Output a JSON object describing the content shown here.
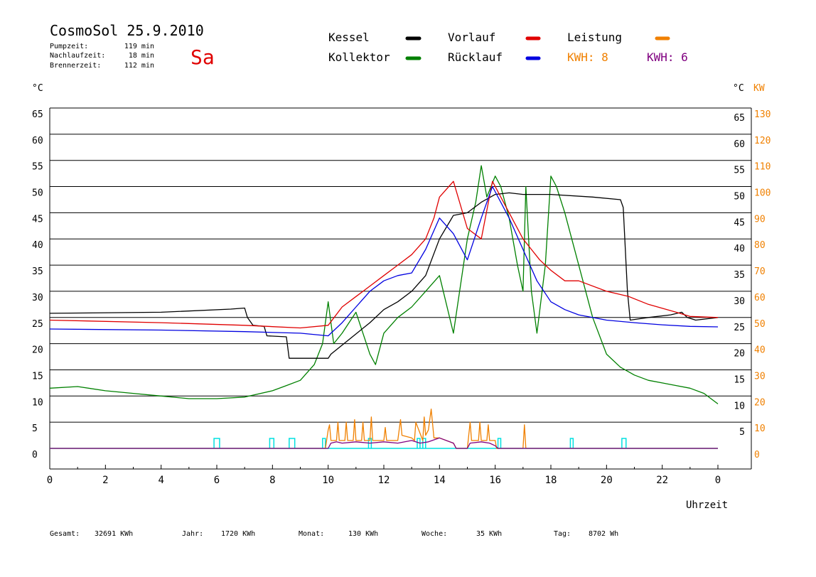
{
  "header": {
    "title": "CosmoSol 25.9.2010",
    "day": "Sa",
    "stats": [
      {
        "label": "Pumpzeit:",
        "value": "119 min"
      },
      {
        "label": "Nachlaufzeit:",
        "value": "18 min"
      },
      {
        "label": "Brennerzeit:",
        "value": "112 min"
      }
    ]
  },
  "legend": {
    "items": [
      {
        "label": "Kessel",
        "color": "#000000"
      },
      {
        "label": "Kollektor",
        "color": "#008000"
      },
      {
        "label": "Vorlauf",
        "color": "#e00000"
      },
      {
        "label": "Rücklauf",
        "color": "#0000e0"
      },
      {
        "label": "Leistung",
        "color": "#f08000"
      }
    ],
    "kwh_orange": "KWH: 8",
    "kwh_purple": "KWH: 6"
  },
  "colors": {
    "kessel": "#000000",
    "kollektor": "#008000",
    "vorlauf": "#e00000",
    "ruecklauf": "#0000e0",
    "leistung": "#f08000",
    "leistung2": "#800080",
    "pump": "#00e0e0",
    "kwh_orange": "#f08000",
    "kwh_purple": "#800080"
  },
  "axes": {
    "left_unit": "°C",
    "right_unit": "°C",
    "right_unit2": "KW",
    "x_label": "Uhrzeit"
  },
  "footer": [
    {
      "label": "Gesamt:",
      "value": "32691 KWh"
    },
    {
      "label": "Jahr:",
      "value": "1720 KWh"
    },
    {
      "label": "Monat:",
      "value": "130 KWh"
    },
    {
      "label": "Woche:",
      "value": "35 KWh"
    },
    {
      "label": "Tag:",
      "value": "8702 Wh"
    }
  ],
  "chart_data": {
    "type": "line",
    "title": "CosmoSol 25.9.2010",
    "xlabel": "Uhrzeit",
    "ylabel": "°C",
    "ylabel_right": "KW",
    "xlim": [
      0,
      24
    ],
    "ylim": [
      0,
      65
    ],
    "ylim_right": [
      0,
      130
    ],
    "x_ticks": [
      "0",
      "2",
      "4",
      "6",
      "8",
      "10",
      "12",
      "14",
      "16",
      "18",
      "20",
      "22",
      "0"
    ],
    "y_ticks": [
      0,
      5,
      10,
      15,
      20,
      25,
      30,
      35,
      40,
      45,
      50,
      55,
      60,
      65
    ],
    "y_ticks_right": [
      0,
      10,
      20,
      30,
      40,
      50,
      60,
      70,
      80,
      90,
      100,
      110,
      120,
      130
    ],
    "grid": true,
    "series": [
      {
        "name": "Kessel",
        "key": "kessel",
        "x": [
          0,
          4,
          6.5,
          7.0,
          7.1,
          7.3,
          7.7,
          7.8,
          8.5,
          8.6,
          10.0,
          10.1,
          10.8,
          11.5,
          12.0,
          12.5,
          13.0,
          13.5,
          14.0,
          14.5,
          15.0,
          15.5,
          16.0,
          16.5,
          17.0,
          18.0,
          19.5,
          20.5,
          20.6,
          20.75,
          20.85,
          21.5,
          22.3,
          22.7,
          22.9,
          23.2,
          24.0
        ],
        "y": [
          25.8,
          26.0,
          26.6,
          26.8,
          25.0,
          23.5,
          23.3,
          21.5,
          21.3,
          17.2,
          17.2,
          18.0,
          21.0,
          24.0,
          26.5,
          28.0,
          30.0,
          33.0,
          40.0,
          44.5,
          45.0,
          47.0,
          48.5,
          48.8,
          48.5,
          48.5,
          48.0,
          47.5,
          46.0,
          30.0,
          24.5,
          25.0,
          25.5,
          26.0,
          25.0,
          24.5,
          25.0
        ]
      },
      {
        "name": "Vorlauf",
        "key": "vorlauf",
        "x": [
          0,
          4,
          7,
          9,
          10,
          10.5,
          11,
          11.5,
          12.0,
          12.5,
          13.0,
          13.5,
          13.8,
          14.0,
          14.5,
          15.0,
          15.5,
          15.9,
          16.5,
          17.0,
          17.3,
          17.6,
          18.0,
          18.5,
          19.0,
          20.0,
          20.8,
          21.5,
          22.5,
          23.0,
          24.0
        ],
        "y": [
          24.5,
          24.0,
          23.5,
          23.0,
          23.5,
          27.0,
          29.0,
          31.0,
          33.0,
          35.0,
          37.0,
          40.0,
          44.0,
          48.0,
          51.0,
          42.0,
          40.0,
          51.0,
          45.0,
          40.0,
          38.0,
          36.0,
          34.0,
          32.0,
          32.0,
          30.0,
          29.0,
          27.5,
          26.0,
          25.2,
          25.0
        ]
      },
      {
        "name": "Rücklauf",
        "key": "ruecklauf",
        "x": [
          0,
          4,
          7,
          9,
          10,
          10.5,
          11,
          11.5,
          12.0,
          12.5,
          13.0,
          13.5,
          14.0,
          14.5,
          15.0,
          15.5,
          15.9,
          16.5,
          17.0,
          17.5,
          18.0,
          18.5,
          19.0,
          20.0,
          21.0,
          22.0,
          23.0,
          24.0
        ],
        "y": [
          22.8,
          22.6,
          22.3,
          22.0,
          21.5,
          24.0,
          27.0,
          30.0,
          32.0,
          33.0,
          33.5,
          38.0,
          44.0,
          41.0,
          36.0,
          44.0,
          50.0,
          44.0,
          38.0,
          32.0,
          28.0,
          26.5,
          25.5,
          24.5,
          24.0,
          23.6,
          23.3,
          23.2
        ]
      },
      {
        "name": "Kollektor",
        "key": "kollektor",
        "x": [
          0,
          1,
          2,
          3,
          4,
          5,
          6,
          7,
          8,
          8.5,
          9.0,
          9.5,
          9.8,
          10.0,
          10.2,
          10.5,
          11.0,
          11.5,
          11.7,
          12.0,
          12.5,
          13.0,
          13.5,
          14.0,
          14.5,
          15.0,
          15.3,
          15.5,
          15.7,
          16.0,
          16.2,
          16.5,
          16.8,
          17.0,
          17.1,
          17.3,
          17.5,
          17.8,
          18.0,
          18.2,
          18.5,
          19.0,
          19.5,
          20.0,
          20.5,
          21.0,
          21.5,
          22.0,
          22.5,
          23.0,
          23.5,
          24.0
        ],
        "y": [
          11.5,
          11.8,
          11.0,
          10.5,
          10.0,
          9.5,
          9.5,
          9.8,
          11.0,
          12.0,
          13.0,
          16.0,
          20.0,
          28.0,
          20.0,
          22.0,
          26.0,
          18.0,
          16.0,
          22.0,
          25.0,
          27.0,
          30.0,
          33.0,
          22.0,
          40.0,
          47.0,
          54.0,
          48.0,
          52.0,
          50.0,
          44.0,
          35.0,
          30.0,
          50.0,
          30.0,
          22.0,
          35.0,
          52.0,
          50.0,
          45.0,
          35.0,
          25.0,
          18.0,
          15.5,
          14.0,
          13.0,
          12.5,
          12.0,
          11.5,
          10.5,
          8.5
        ]
      },
      {
        "name": "Leistung",
        "key": "leistung",
        "axis": "right",
        "x": [
          0,
          9.9,
          10.0,
          10.05,
          10.1,
          10.3,
          10.35,
          10.4,
          10.6,
          10.65,
          10.7,
          10.9,
          10.95,
          11.0,
          11.2,
          11.25,
          11.3,
          11.5,
          11.55,
          11.6,
          12.0,
          12.05,
          12.1,
          12.5,
          12.6,
          12.65,
          13.0,
          13.1,
          13.15,
          13.4,
          13.45,
          13.5,
          13.6,
          13.7,
          13.8,
          14.0,
          14.5,
          14.6,
          15.0,
          15.1,
          15.15,
          15.4,
          15.45,
          15.5,
          15.7,
          15.75,
          15.8,
          16.0,
          16.05,
          17.0,
          17.05,
          17.1,
          24.0
        ],
        "y": [
          0,
          0,
          7,
          9,
          3,
          3,
          10,
          3,
          3,
          10,
          3,
          3,
          11,
          3,
          3,
          10,
          3,
          3,
          12,
          3,
          3,
          8,
          3,
          3,
          11,
          5,
          4,
          3,
          10,
          3,
          12,
          5,
          7,
          15,
          4,
          4,
          2,
          0,
          0,
          10,
          3,
          3,
          10,
          3,
          3,
          9,
          3,
          3,
          0,
          0,
          9,
          0,
          0
        ]
      },
      {
        "name": "Leistung KWH 6",
        "key": "leistung2",
        "axis": "right",
        "x": [
          0,
          10.0,
          10.1,
          10.3,
          10.5,
          11.0,
          11.5,
          12.0,
          12.5,
          13.0,
          13.3,
          13.6,
          14.0,
          14.5,
          14.6,
          15.0,
          15.1,
          15.5,
          15.8,
          16.0,
          16.1,
          24.0
        ],
        "y": [
          0,
          0,
          2,
          2.5,
          2,
          2.5,
          2,
          2.5,
          2,
          3,
          2,
          2.5,
          4,
          2,
          0,
          0,
          2,
          2.5,
          2,
          1,
          0,
          0
        ]
      }
    ],
    "pump_on_intervals": [
      [
        5.9,
        6.1
      ],
      [
        7.9,
        8.05
      ],
      [
        8.6,
        8.8
      ],
      [
        9.8,
        9.9
      ],
      [
        11.45,
        11.55
      ],
      [
        13.2,
        13.3
      ],
      [
        13.4,
        13.5
      ],
      [
        16.1,
        16.2
      ],
      [
        18.7,
        18.8
      ],
      [
        20.55,
        20.7
      ]
    ]
  }
}
